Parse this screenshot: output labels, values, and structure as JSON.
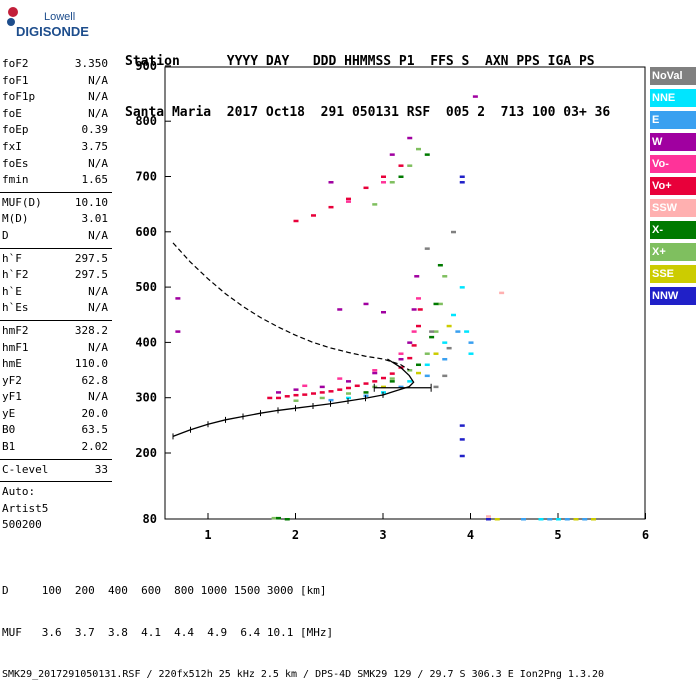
{
  "logo": {
    "line1": "Lowell",
    "line2": "DIGISONDE"
  },
  "header": {
    "row1": "Station      YYYY DAY   DDD HHMMSS P1  FFS S  AXN PPS IGA PS",
    "row2": "Santa Maria  2017 Oct18  291 050131 RSF  005 2  713 100 03+ 36"
  },
  "params": [
    {
      "label": "foF2",
      "value": "3.350"
    },
    {
      "label": "foF1",
      "value": "N/A"
    },
    {
      "label": "foF1p",
      "value": "N/A"
    },
    {
      "label": "foE",
      "value": "N/A"
    },
    {
      "label": "foEp",
      "value": "0.39"
    },
    {
      "label": "fxI",
      "value": "3.75"
    },
    {
      "label": "foEs",
      "value": "N/A"
    },
    {
      "label": "fmin",
      "value": "1.65"
    },
    {
      "sep": true
    },
    {
      "label": "MUF(D)",
      "value": "10.10"
    },
    {
      "label": "M(D)",
      "value": "3.01"
    },
    {
      "label": "D",
      "value": "N/A"
    },
    {
      "sep": true
    },
    {
      "label": "h`F",
      "value": "297.5"
    },
    {
      "label": "h`F2",
      "value": "297.5"
    },
    {
      "label": "h`E",
      "value": "N/A"
    },
    {
      "label": "h`Es",
      "value": "N/A"
    },
    {
      "sep": true
    },
    {
      "label": "hmF2",
      "value": "328.2"
    },
    {
      "label": "hmF1",
      "value": "N/A"
    },
    {
      "label": "hmE",
      "value": "110.0"
    },
    {
      "label": "yF2",
      "value": "62.8"
    },
    {
      "label": "yF1",
      "value": "N/A"
    },
    {
      "label": "yE",
      "value": "20.0"
    },
    {
      "label": "B0",
      "value": "63.5"
    },
    {
      "label": "B1",
      "value": "2.02"
    },
    {
      "sep": true
    },
    {
      "label": "C-level",
      "value": "33"
    },
    {
      "sep": true
    },
    {
      "label": "Auto:",
      "value": ""
    },
    {
      "label": "Artist5",
      "value": ""
    },
    {
      "label": "500200",
      "value": ""
    }
  ],
  "footer": {
    "line1": "D     100  200  400  600  800 1000 1500 3000 [km]",
    "line2": "MUF   3.6  3.7  3.8  4.1  4.4  4.9  6.4 10.1 [MHz]",
    "line3": "SMK29_2017291050131.RSF / 220fx512h 25 kHz 2.5 km / DPS-4D SMK29 129 / 29.7 S 306.3 E Ion2Png 1.3.20"
  },
  "legend": [
    {
      "label": "NoVal",
      "color": "#808080"
    },
    {
      "label": "NNE",
      "color": "#00e5ff"
    },
    {
      "label": "E",
      "color": "#3aa0f0"
    },
    {
      "label": "W",
      "color": "#a000a0"
    },
    {
      "label": "Vo-",
      "color": "#ff3399"
    },
    {
      "label": "Vo+",
      "color": "#e8003a"
    },
    {
      "label": "SSW",
      "color": "#ffb0b0"
    },
    {
      "label": "X-",
      "color": "#007a00"
    },
    {
      "label": "X+",
      "color": "#7fbf5f"
    },
    {
      "label": "SSE",
      "color": "#cccc00"
    },
    {
      "label": "NNW",
      "color": "#2020c8"
    }
  ],
  "chart_data": {
    "type": "scatter",
    "x_ticks": [
      1,
      2,
      3,
      4,
      5,
      6
    ],
    "y_ticks": [
      80,
      200,
      300,
      400,
      500,
      600,
      700,
      800,
      900
    ],
    "xlim": [
      0.6,
      6
    ],
    "ylim": [
      80,
      900
    ],
    "grid": false,
    "legend_position": "right",
    "series": [
      {
        "name": "Vo+",
        "color": "#e8003a",
        "points": [
          [
            1.7,
            300
          ],
          [
            1.8,
            300
          ],
          [
            1.9,
            303
          ],
          [
            2.0,
            305
          ],
          [
            2.1,
            306
          ],
          [
            2.2,
            308
          ],
          [
            2.3,
            310
          ],
          [
            2.4,
            312
          ],
          [
            2.5,
            315
          ],
          [
            2.6,
            318
          ],
          [
            2.7,
            322
          ],
          [
            2.8,
            326
          ],
          [
            2.9,
            330
          ],
          [
            3.0,
            336
          ],
          [
            3.1,
            344
          ],
          [
            3.2,
            355
          ],
          [
            3.3,
            372
          ],
          [
            3.35,
            395
          ],
          [
            3.4,
            430
          ],
          [
            3.42,
            460
          ],
          [
            2.0,
            620
          ],
          [
            2.2,
            630
          ],
          [
            2.4,
            645
          ],
          [
            2.6,
            660
          ],
          [
            2.8,
            680
          ],
          [
            3.0,
            700
          ],
          [
            3.2,
            720
          ]
        ]
      },
      {
        "name": "W",
        "color": "#a000a0",
        "points": [
          [
            1.8,
            310
          ],
          [
            2.0,
            315
          ],
          [
            2.3,
            320
          ],
          [
            2.6,
            330
          ],
          [
            2.9,
            345
          ],
          [
            3.2,
            370
          ],
          [
            3.3,
            400
          ],
          [
            3.35,
            460
          ],
          [
            3.38,
            520
          ],
          [
            0.65,
            480
          ],
          [
            0.65,
            420
          ],
          [
            2.5,
            460
          ],
          [
            2.8,
            470
          ],
          [
            3.0,
            455
          ],
          [
            4.05,
            845
          ],
          [
            3.3,
            770
          ],
          [
            2.4,
            690
          ],
          [
            3.1,
            740
          ]
        ]
      },
      {
        "name": "Vo-",
        "color": "#ff3399",
        "points": [
          [
            2.1,
            322
          ],
          [
            2.5,
            335
          ],
          [
            2.9,
            350
          ],
          [
            3.2,
            380
          ],
          [
            3.35,
            420
          ],
          [
            3.4,
            480
          ],
          [
            2.6,
            655
          ],
          [
            3.0,
            690
          ],
          [
            4.2,
            80
          ]
        ]
      },
      {
        "name": "X+",
        "color": "#7fbf5f",
        "points": [
          [
            2.0,
            295
          ],
          [
            2.3,
            300
          ],
          [
            2.6,
            308
          ],
          [
            2.9,
            320
          ],
          [
            3.1,
            335
          ],
          [
            3.3,
            350
          ],
          [
            3.5,
            380
          ],
          [
            3.6,
            420
          ],
          [
            3.65,
            470
          ],
          [
            3.7,
            520
          ],
          [
            2.9,
            650
          ],
          [
            3.1,
            690
          ],
          [
            3.3,
            720
          ],
          [
            3.4,
            750
          ],
          [
            1.75,
            82
          ]
        ]
      },
      {
        "name": "X-",
        "color": "#007a00",
        "points": [
          [
            1.8,
            82
          ],
          [
            1.9,
            80
          ],
          [
            2.8,
            310
          ],
          [
            3.1,
            330
          ],
          [
            3.4,
            360
          ],
          [
            3.55,
            410
          ],
          [
            3.6,
            470
          ],
          [
            3.65,
            540
          ],
          [
            3.2,
            700
          ],
          [
            3.5,
            740
          ]
        ]
      },
      {
        "name": "NNE",
        "color": "#00e5ff",
        "points": [
          [
            2.6,
            300
          ],
          [
            3.0,
            310
          ],
          [
            3.3,
            330
          ],
          [
            3.5,
            360
          ],
          [
            3.7,
            400
          ],
          [
            3.8,
            450
          ],
          [
            3.9,
            500
          ],
          [
            3.95,
            420
          ],
          [
            4.0,
            380
          ],
          [
            4.6,
            80
          ],
          [
            4.8,
            80
          ],
          [
            5.0,
            80
          ]
        ]
      },
      {
        "name": "E",
        "color": "#3aa0f0",
        "points": [
          [
            2.4,
            296
          ],
          [
            2.8,
            304
          ],
          [
            3.2,
            320
          ],
          [
            3.5,
            340
          ],
          [
            3.7,
            370
          ],
          [
            3.85,
            420
          ],
          [
            4.0,
            400
          ],
          [
            4.6,
            80
          ],
          [
            4.9,
            80
          ],
          [
            5.1,
            80
          ],
          [
            5.3,
            80
          ]
        ]
      },
      {
        "name": "SSE",
        "color": "#cccc00",
        "points": [
          [
            3.0,
            320
          ],
          [
            3.4,
            345
          ],
          [
            3.6,
            380
          ],
          [
            3.75,
            430
          ],
          [
            5.2,
            80
          ],
          [
            5.4,
            80
          ],
          [
            4.3,
            80
          ]
        ]
      },
      {
        "name": "NNW",
        "color": "#2020c8",
        "points": [
          [
            3.9,
            700
          ],
          [
            3.9,
            690
          ],
          [
            3.9,
            250
          ],
          [
            3.9,
            225
          ],
          [
            3.9,
            195
          ],
          [
            4.2,
            80
          ]
        ]
      },
      {
        "name": "SSW",
        "color": "#ffb0b0",
        "points": [
          [
            4.2,
            85
          ],
          [
            4.35,
            490
          ]
        ]
      },
      {
        "name": "NoVal",
        "color": "#808080",
        "points": [
          [
            3.6,
            320
          ],
          [
            3.7,
            340
          ],
          [
            3.75,
            390
          ],
          [
            3.5,
            570
          ],
          [
            3.8,
            600
          ],
          [
            3.55,
            420
          ]
        ]
      }
    ],
    "profile_curve": [
      [
        0.6,
        230
      ],
      [
        0.8,
        242
      ],
      [
        1.0,
        252
      ],
      [
        1.2,
        260
      ],
      [
        1.4,
        266
      ],
      [
        1.6,
        272
      ],
      [
        1.8,
        277
      ],
      [
        2.0,
        281
      ],
      [
        2.2,
        285
      ],
      [
        2.4,
        289
      ],
      [
        2.6,
        294
      ],
      [
        2.8,
        299
      ],
      [
        3.0,
        305
      ],
      [
        3.1,
        310
      ],
      [
        3.2,
        315
      ],
      [
        3.3,
        320
      ],
      [
        3.35,
        328
      ],
      [
        3.3,
        340
      ],
      [
        3.2,
        355
      ],
      [
        3.05,
        370
      ]
    ],
    "dashed_curve": [
      [
        0.6,
        580
      ],
      [
        0.8,
        545
      ],
      [
        1.0,
        515
      ],
      [
        1.2,
        488
      ],
      [
        1.4,
        465
      ],
      [
        1.6,
        445
      ],
      [
        1.8,
        428
      ],
      [
        2.0,
        413
      ],
      [
        2.2,
        400
      ],
      [
        2.4,
        390
      ],
      [
        2.6,
        382
      ],
      [
        2.8,
        375
      ],
      [
        3.0,
        370
      ],
      [
        3.2,
        360
      ],
      [
        3.3,
        350
      ]
    ],
    "error_bar": {
      "x1": 2.9,
      "x2": 3.55,
      "y": 318
    }
  }
}
